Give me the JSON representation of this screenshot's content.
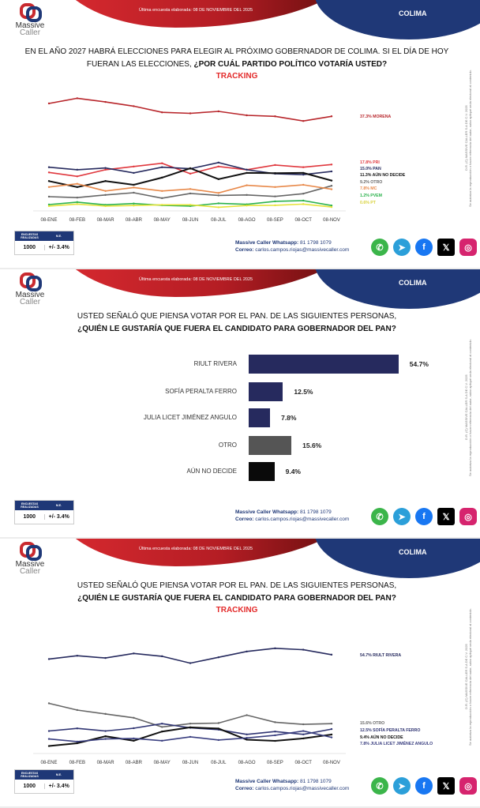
{
  "header": {
    "date": "Última encuesta elaborada: 08 DE NOVIEMBRE DEL 2025",
    "region": "COLIMA",
    "logo_line1": "Massive",
    "logo_line2": "Caller"
  },
  "legal": {
    "copyright": "D.R. (C) MASSIVE CALLER S.A DE C.V. 2025",
    "disclaimer": "Se autoriza la reproducción o hacer referencia del autor, salvo apliqué veda electoral al contenido."
  },
  "footer": {
    "surveys_label": "ENCUESTAS REALIZADAS",
    "me_label": "M.E.",
    "surveys": "1000",
    "me": "+/- 3.4%",
    "whatsapp_label": "Massive Caller Whatsapp:",
    "whatsapp": " 81 1798 1079",
    "email_label": "Correo:",
    "email": " carlos.campos.riojas@massivecaller.com",
    "social": [
      {
        "icon": "whatsapp-icon",
        "color": "#3bb54a"
      },
      {
        "icon": "telegram-icon",
        "color": "#2b9fd9"
      },
      {
        "icon": "facebook-icon",
        "color": "#1877f2"
      },
      {
        "icon": "x-icon",
        "color": "#000000"
      },
      {
        "icon": "instagram-icon",
        "color": "#d6246e"
      }
    ]
  },
  "slides": [
    {
      "title_line1": "EN EL AÑO 2027 HABRÁ ELECCIONES PARA ELEGIR AL PRÓXIMO GOBERNADOR DE COLIMA. SI EL DÍA DE HOY",
      "title_line2": "FUERAN LAS ELECCIONES, ",
      "title_bold": "¿POR CUÁL PARTIDO POLÍTICO VOTARÍA USTED?",
      "subtitle": "TRACKING"
    },
    {
      "title_line1": "USTED SEÑALÓ QUE PIENSA VOTAR POR EL PAN. DE LAS SIGUIENTES PERSONAS,",
      "title_line2": "",
      "title_bold": "¿QUIÉN LE GUSTARÍA QUE FUERA EL CANDIDATO PARA GOBERNADOR DEL PAN?"
    },
    {
      "title_line1": "USTED SEÑALÓ QUE PIENSA VOTAR POR EL PAN. DE LAS SIGUIENTES PERSONAS,",
      "title_line2": "",
      "title_bold": "¿QUIÉN LE GUSTARÍA QUE FUERA EL CANDIDATO PARA GOBERNADOR DEL PAN?",
      "subtitle": "TRACKING"
    }
  ],
  "chart_data": [
    {
      "type": "line",
      "title": "TRACKING",
      "x": [
        "08-ENE",
        "08-FEB",
        "08-MAR",
        "08-ABR",
        "08-MAY",
        "08-JUN",
        "08-JUL",
        "08-AGO",
        "08-SEP",
        "08-OCT",
        "08-NOV"
      ],
      "series": [
        {
          "name": "MORENA",
          "label": "37.3% MORENA",
          "color": "#b8262b",
          "values": [
            42.5,
            44.6,
            43.1,
            41.4,
            38.9,
            38.5,
            39.3,
            37.7,
            37.3,
            35.4,
            37.3
          ]
        },
        {
          "name": "PRI",
          "label": "17.8% PRI",
          "color": "#e0383e",
          "values": [
            14.6,
            13.0,
            15.7,
            17.0,
            18.3,
            14.1,
            17.0,
            15.7,
            17.6,
            16.7,
            17.8
          ]
        },
        {
          "name": "PAN",
          "label": "15.0% PAN",
          "color": "#262a5e",
          "values": [
            16.7,
            15.7,
            16.4,
            14.4,
            16.7,
            16.1,
            18.6,
            15.7,
            14.1,
            13.7,
            15.0
          ]
        },
        {
          "name": "AÚN NO DECIDE",
          "label": "11.3% AÚN NO DECIDE",
          "color": "#111111",
          "values": [
            11.1,
            8.7,
            11.1,
            9.6,
            12.5,
            16.3,
            11.9,
            14.4,
            14.3,
            14.4,
            11.3
          ]
        },
        {
          "name": "OTRO",
          "label": "9.2% OTRO",
          "color": "#666666",
          "values": [
            4.8,
            4.4,
            5.5,
            6.4,
            4.2,
            6.1,
            5.3,
            5.5,
            4.9,
            6.0,
            9.2
          ]
        },
        {
          "name": "MC",
          "label": "7.8% MC",
          "color": "#e8894a",
          "values": [
            8.7,
            10.0,
            7.1,
            8.5,
            7.1,
            7.9,
            6.3,
            9.4,
            8.7,
            9.6,
            7.8
          ]
        },
        {
          "name": "PVEM",
          "label": "1.2% PVEM",
          "color": "#2bb24c",
          "values": [
            1.6,
            2.6,
            1.5,
            2.0,
            1.3,
            1.0,
            2.1,
            1.7,
            2.9,
            3.2,
            1.2
          ]
        },
        {
          "name": "PT",
          "label": "0.6% PT",
          "color": "#e6e33a",
          "values": [
            1.0,
            1.8,
            1.0,
            1.2,
            1.5,
            1.5,
            0.5,
            1.2,
            1.3,
            1.8,
            0.6
          ]
        }
      ]
    },
    {
      "type": "bar",
      "orientation": "horizontal",
      "categories": [
        "RIULT RIVERA",
        "SOFÍA PERALTA FERRO",
        "JULIA LICET JIMÉNEZ ANGULO",
        "OTRO",
        "AÚN NO DECIDE"
      ],
      "values": [
        54.7,
        12.5,
        7.8,
        15.6,
        9.4
      ],
      "value_labels": [
        "54.7%",
        "12.5%",
        "7.8%",
        "15.6%",
        "9.4%"
      ],
      "colors": [
        "#262a5e",
        "#262a5e",
        "#262a5e",
        "#555555",
        "#0a0a0a"
      ]
    },
    {
      "type": "line",
      "title": "TRACKING",
      "x": [
        "08-ENE",
        "08-FEB",
        "08-MAR",
        "08-ABR",
        "08-MAY",
        "08-JUN",
        "08-JUL",
        "08-AGO",
        "08-SEP",
        "08-OCT",
        "08-NOV"
      ],
      "series": [
        {
          "name": "RIULT RIVERA",
          "label": "54.7% RIULT RIVERA",
          "color": "#262a5e",
          "values": [
            52.2,
            54.1,
            52.8,
            55.4,
            53.8,
            49.9,
            53.2,
            56.5,
            58.3,
            57.5,
            54.7
          ]
        },
        {
          "name": "OTRO",
          "label": "15.6% OTRO",
          "color": "#666666",
          "values": [
            27.1,
            23.3,
            21.1,
            18.9,
            13.7,
            15.6,
            15.9,
            20.4,
            16.4,
            15.2,
            15.6
          ]
        },
        {
          "name": "SOFÍA PERALTA FERRO",
          "label": "12.5% SOFÍA PERALTA FERRO",
          "color": "#2f3472",
          "values": [
            11.4,
            12.9,
            11.4,
            13.0,
            15.6,
            13.2,
            12.2,
            9.5,
            11.1,
            9.5,
            12.5
          ]
        },
        {
          "name": "AÚN NO DECIDE",
          "label": "9.4% AÚN NO DECIDE",
          "color": "#111111",
          "values": [
            2.9,
            4.5,
            8.4,
            5.9,
            11.1,
            13.5,
            12.8,
            6.5,
            5.8,
            7.2,
            9.4
          ]
        },
        {
          "name": "JULIA LICET JIMÉNEZ ANGULO",
          "label": "7.8% JULIA LICET JIMÉNEZ ANGULO",
          "color": "#3a3f80",
          "values": [
            6.9,
            5.4,
            6.9,
            7.2,
            5.9,
            8.1,
            6.3,
            7.5,
            9.0,
            11.4,
            7.8
          ]
        }
      ]
    }
  ]
}
